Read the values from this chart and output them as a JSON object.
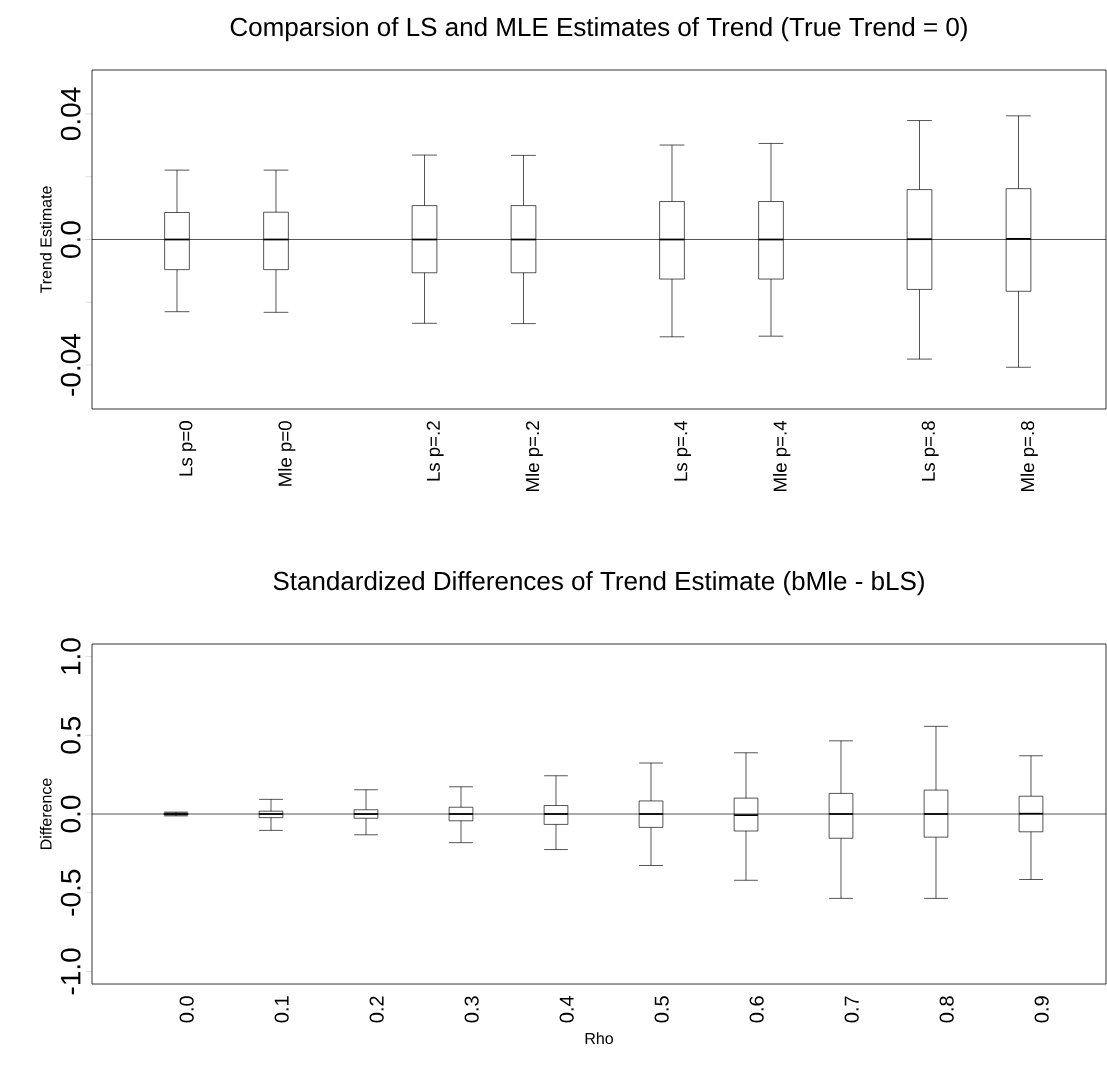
{
  "chart_data": [
    {
      "type": "box",
      "title": "Comparsion of LS and MLE Estimates of Trend (True Trend = 0)",
      "ylabel": "Trend Estimate",
      "categories": [
        "Ls p=0",
        "Mle p=0",
        "Ls p=.2",
        "Mle p=.2",
        "Ls p=.4",
        "Mle p=.4",
        "Ls p=.8",
        "Mle p=.8"
      ],
      "boxes": [
        {
          "low": -0.023,
          "q1": -0.0096,
          "median": 0,
          "q3": 0.0086,
          "high": 0.0221
        },
        {
          "low": -0.0232,
          "q1": -0.0096,
          "median": 0,
          "q3": 0.0087,
          "high": 0.0221
        },
        {
          "low": -0.0267,
          "q1": -0.0106,
          "median": 0,
          "q3": 0.0108,
          "high": 0.0269
        },
        {
          "low": -0.0268,
          "q1": -0.0106,
          "median": 0,
          "q3": 0.0108,
          "high": 0.0268
        },
        {
          "low": -0.031,
          "q1": -0.0126,
          "median": 0,
          "q3": 0.0121,
          "high": 0.0301
        },
        {
          "low": -0.0308,
          "q1": -0.0126,
          "median": 0,
          "q3": 0.0121,
          "high": 0.0306
        },
        {
          "low": -0.0381,
          "q1": -0.0159,
          "median": 0.0001,
          "q3": 0.0159,
          "high": 0.0379
        },
        {
          "low": -0.0407,
          "q1": -0.0165,
          "median": 0.0002,
          "q3": 0.0162,
          "high": 0.0394
        }
      ],
      "ylim": [
        -0.054,
        0.054
      ],
      "yticks": [
        -0.04,
        {
          "value": -0.02,
          "label": null
        },
        {
          "value": 0,
          "label": "0.0"
        },
        {
          "value": 0.02,
          "label": null
        },
        0.04
      ],
      "ref_lines": [
        {
          "axis": "y",
          "value": 0
        }
      ]
    },
    {
      "type": "box",
      "title": "Standardized Differences of Trend Estimate (bMle - bLS)",
      "xlabel": "Rho",
      "ylabel": "Difference",
      "categories": [
        "0.0",
        "0.1",
        "0.2",
        "0.3",
        "0.4",
        "0.5",
        "0.6",
        "0.7",
        "0.8",
        "0.9"
      ],
      "boxes": [
        {
          "low": -0.012,
          "q1": -0.006,
          "median": 0,
          "q3": 0.006,
          "high": 0.012
        },
        {
          "low": -0.104,
          "q1": -0.023,
          "median": 0,
          "q3": 0.018,
          "high": 0.093
        },
        {
          "low": -0.132,
          "q1": -0.027,
          "median": 0,
          "q3": 0.027,
          "high": 0.154
        },
        {
          "low": -0.182,
          "q1": -0.043,
          "median": 0,
          "q3": 0.043,
          "high": 0.173
        },
        {
          "low": -0.226,
          "q1": -0.066,
          "median": 0,
          "q3": 0.054,
          "high": 0.243
        },
        {
          "low": -0.327,
          "q1": -0.085,
          "median": 0,
          "q3": 0.083,
          "high": 0.324
        },
        {
          "low": -0.421,
          "q1": -0.108,
          "median": -0.007,
          "q3": 0.101,
          "high": 0.389
        },
        {
          "low": -0.536,
          "q1": -0.154,
          "median": 0,
          "q3": 0.131,
          "high": 0.465
        },
        {
          "low": -0.536,
          "q1": -0.147,
          "median": 0,
          "q3": 0.152,
          "high": 0.557
        },
        {
          "low": -0.416,
          "q1": -0.113,
          "median": 0.002,
          "q3": 0.113,
          "high": 0.37
        }
      ],
      "ylim": [
        -1.08,
        1.08
      ],
      "yticks": [
        {
          "value": -1,
          "label": "-1.0"
        },
        -0.5,
        {
          "value": 0,
          "label": "0.0"
        },
        0.5,
        {
          "value": 1,
          "label": "1.0"
        }
      ],
      "ref_lines": [
        {
          "axis": "y",
          "value": 0
        }
      ]
    }
  ]
}
